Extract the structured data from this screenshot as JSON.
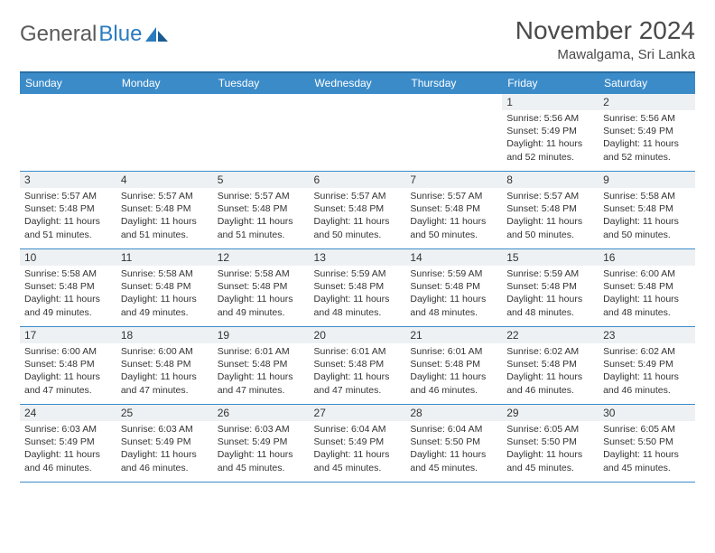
{
  "brand": {
    "part1": "General",
    "part2": "Blue"
  },
  "title": "November 2024",
  "location": "Mawalgama, Sri Lanka",
  "colors": {
    "header_bg": "#3b8bc9",
    "header_border": "#2b6fa3",
    "daynum_bg": "#eef1f3",
    "text": "#333333",
    "brand_gray": "#5a5a5a",
    "brand_blue": "#2b7bbf"
  },
  "weekdays": [
    "Sunday",
    "Monday",
    "Tuesday",
    "Wednesday",
    "Thursday",
    "Friday",
    "Saturday"
  ],
  "weeks": [
    [
      null,
      null,
      null,
      null,
      null,
      {
        "n": "1",
        "sr": "Sunrise: 5:56 AM",
        "ss": "Sunset: 5:49 PM",
        "d1": "Daylight: 11 hours",
        "d2": "and 52 minutes."
      },
      {
        "n": "2",
        "sr": "Sunrise: 5:56 AM",
        "ss": "Sunset: 5:49 PM",
        "d1": "Daylight: 11 hours",
        "d2": "and 52 minutes."
      }
    ],
    [
      {
        "n": "3",
        "sr": "Sunrise: 5:57 AM",
        "ss": "Sunset: 5:48 PM",
        "d1": "Daylight: 11 hours",
        "d2": "and 51 minutes."
      },
      {
        "n": "4",
        "sr": "Sunrise: 5:57 AM",
        "ss": "Sunset: 5:48 PM",
        "d1": "Daylight: 11 hours",
        "d2": "and 51 minutes."
      },
      {
        "n": "5",
        "sr": "Sunrise: 5:57 AM",
        "ss": "Sunset: 5:48 PM",
        "d1": "Daylight: 11 hours",
        "d2": "and 51 minutes."
      },
      {
        "n": "6",
        "sr": "Sunrise: 5:57 AM",
        "ss": "Sunset: 5:48 PM",
        "d1": "Daylight: 11 hours",
        "d2": "and 50 minutes."
      },
      {
        "n": "7",
        "sr": "Sunrise: 5:57 AM",
        "ss": "Sunset: 5:48 PM",
        "d1": "Daylight: 11 hours",
        "d2": "and 50 minutes."
      },
      {
        "n": "8",
        "sr": "Sunrise: 5:57 AM",
        "ss": "Sunset: 5:48 PM",
        "d1": "Daylight: 11 hours",
        "d2": "and 50 minutes."
      },
      {
        "n": "9",
        "sr": "Sunrise: 5:58 AM",
        "ss": "Sunset: 5:48 PM",
        "d1": "Daylight: 11 hours",
        "d2": "and 50 minutes."
      }
    ],
    [
      {
        "n": "10",
        "sr": "Sunrise: 5:58 AM",
        "ss": "Sunset: 5:48 PM",
        "d1": "Daylight: 11 hours",
        "d2": "and 49 minutes."
      },
      {
        "n": "11",
        "sr": "Sunrise: 5:58 AM",
        "ss": "Sunset: 5:48 PM",
        "d1": "Daylight: 11 hours",
        "d2": "and 49 minutes."
      },
      {
        "n": "12",
        "sr": "Sunrise: 5:58 AM",
        "ss": "Sunset: 5:48 PM",
        "d1": "Daylight: 11 hours",
        "d2": "and 49 minutes."
      },
      {
        "n": "13",
        "sr": "Sunrise: 5:59 AM",
        "ss": "Sunset: 5:48 PM",
        "d1": "Daylight: 11 hours",
        "d2": "and 48 minutes."
      },
      {
        "n": "14",
        "sr": "Sunrise: 5:59 AM",
        "ss": "Sunset: 5:48 PM",
        "d1": "Daylight: 11 hours",
        "d2": "and 48 minutes."
      },
      {
        "n": "15",
        "sr": "Sunrise: 5:59 AM",
        "ss": "Sunset: 5:48 PM",
        "d1": "Daylight: 11 hours",
        "d2": "and 48 minutes."
      },
      {
        "n": "16",
        "sr": "Sunrise: 6:00 AM",
        "ss": "Sunset: 5:48 PM",
        "d1": "Daylight: 11 hours",
        "d2": "and 48 minutes."
      }
    ],
    [
      {
        "n": "17",
        "sr": "Sunrise: 6:00 AM",
        "ss": "Sunset: 5:48 PM",
        "d1": "Daylight: 11 hours",
        "d2": "and 47 minutes."
      },
      {
        "n": "18",
        "sr": "Sunrise: 6:00 AM",
        "ss": "Sunset: 5:48 PM",
        "d1": "Daylight: 11 hours",
        "d2": "and 47 minutes."
      },
      {
        "n": "19",
        "sr": "Sunrise: 6:01 AM",
        "ss": "Sunset: 5:48 PM",
        "d1": "Daylight: 11 hours",
        "d2": "and 47 minutes."
      },
      {
        "n": "20",
        "sr": "Sunrise: 6:01 AM",
        "ss": "Sunset: 5:48 PM",
        "d1": "Daylight: 11 hours",
        "d2": "and 47 minutes."
      },
      {
        "n": "21",
        "sr": "Sunrise: 6:01 AM",
        "ss": "Sunset: 5:48 PM",
        "d1": "Daylight: 11 hours",
        "d2": "and 46 minutes."
      },
      {
        "n": "22",
        "sr": "Sunrise: 6:02 AM",
        "ss": "Sunset: 5:48 PM",
        "d1": "Daylight: 11 hours",
        "d2": "and 46 minutes."
      },
      {
        "n": "23",
        "sr": "Sunrise: 6:02 AM",
        "ss": "Sunset: 5:49 PM",
        "d1": "Daylight: 11 hours",
        "d2": "and 46 minutes."
      }
    ],
    [
      {
        "n": "24",
        "sr": "Sunrise: 6:03 AM",
        "ss": "Sunset: 5:49 PM",
        "d1": "Daylight: 11 hours",
        "d2": "and 46 minutes."
      },
      {
        "n": "25",
        "sr": "Sunrise: 6:03 AM",
        "ss": "Sunset: 5:49 PM",
        "d1": "Daylight: 11 hours",
        "d2": "and 46 minutes."
      },
      {
        "n": "26",
        "sr": "Sunrise: 6:03 AM",
        "ss": "Sunset: 5:49 PM",
        "d1": "Daylight: 11 hours",
        "d2": "and 45 minutes."
      },
      {
        "n": "27",
        "sr": "Sunrise: 6:04 AM",
        "ss": "Sunset: 5:49 PM",
        "d1": "Daylight: 11 hours",
        "d2": "and 45 minutes."
      },
      {
        "n": "28",
        "sr": "Sunrise: 6:04 AM",
        "ss": "Sunset: 5:50 PM",
        "d1": "Daylight: 11 hours",
        "d2": "and 45 minutes."
      },
      {
        "n": "29",
        "sr": "Sunrise: 6:05 AM",
        "ss": "Sunset: 5:50 PM",
        "d1": "Daylight: 11 hours",
        "d2": "and 45 minutes."
      },
      {
        "n": "30",
        "sr": "Sunrise: 6:05 AM",
        "ss": "Sunset: 5:50 PM",
        "d1": "Daylight: 11 hours",
        "d2": "and 45 minutes."
      }
    ]
  ]
}
